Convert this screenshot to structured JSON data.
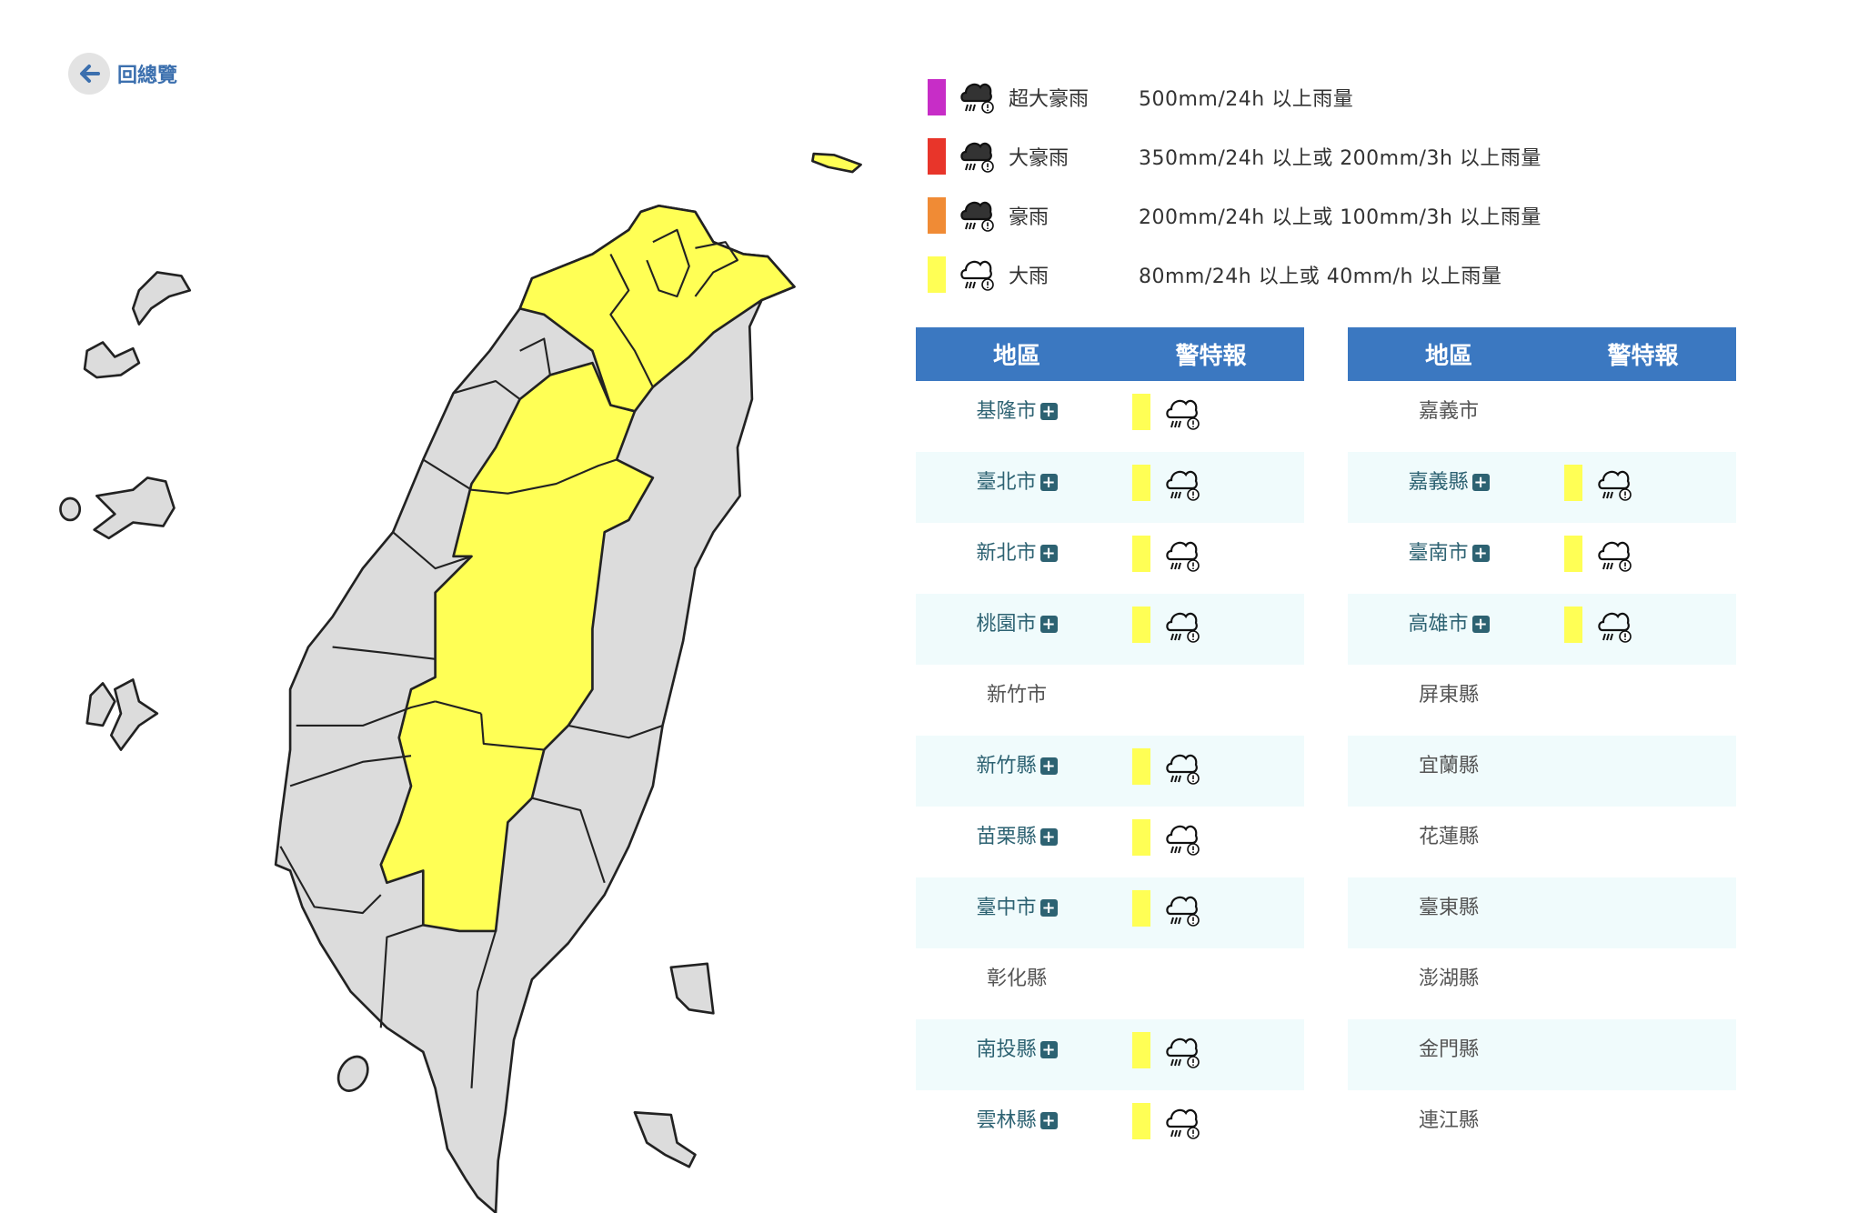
{
  "back": {
    "label": "回總覽",
    "icon": "arrow-left-icon"
  },
  "legend": [
    {
      "color": "#c72dc7",
      "icon": "torrential-rain-icon",
      "label": "超大豪雨",
      "desc": "500mm/24h 以上雨量"
    },
    {
      "color": "#e8352a",
      "icon": "extremely-heavy-rain-icon",
      "label": "大豪雨",
      "desc": "350mm/24h 以上或 200mm/3h 以上雨量"
    },
    {
      "color": "#f08b35",
      "icon": "very-heavy-rain-icon",
      "label": "豪雨",
      "desc": "200mm/24h 以上或 100mm/3h 以上雨量"
    },
    {
      "color": "#ffff55",
      "icon": "heavy-rain-icon",
      "label": "大雨",
      "desc": "80mm/24h 以上或 40mm/h 以上雨量"
    }
  ],
  "tables": [
    {
      "headers": [
        "地區",
        "警特報"
      ],
      "rows": [
        {
          "name": "基隆市",
          "warning": "大雨"
        },
        {
          "name": "臺北市",
          "warning": "大雨"
        },
        {
          "name": "新北市",
          "warning": "大雨"
        },
        {
          "name": "桃園市",
          "warning": "大雨"
        },
        {
          "name": "新竹市",
          "warning": null
        },
        {
          "name": "新竹縣",
          "warning": "大雨"
        },
        {
          "name": "苗栗縣",
          "warning": "大雨"
        },
        {
          "name": "臺中市",
          "warning": "大雨"
        },
        {
          "name": "彰化縣",
          "warning": null
        },
        {
          "name": "南投縣",
          "warning": "大雨"
        },
        {
          "name": "雲林縣",
          "warning": "大雨"
        }
      ]
    },
    {
      "headers": [
        "地區",
        "警特報"
      ],
      "rows": [
        {
          "name": "嘉義市",
          "warning": null
        },
        {
          "name": "嘉義縣",
          "warning": "大雨"
        },
        {
          "name": "臺南市",
          "warning": "大雨"
        },
        {
          "name": "高雄市",
          "warning": "大雨"
        },
        {
          "name": "屏東縣",
          "warning": null
        },
        {
          "name": "宜蘭縣",
          "warning": null
        },
        {
          "name": "花蓮縣",
          "warning": null
        },
        {
          "name": "臺東縣",
          "warning": null
        },
        {
          "name": "澎湖縣",
          "warning": null
        },
        {
          "name": "金門縣",
          "warning": null
        },
        {
          "name": "連江縣",
          "warning": null
        }
      ]
    }
  ],
  "map": {
    "warned_color": "#ffff55",
    "base_color": "#dcdcdc",
    "border_color": "#222222"
  }
}
